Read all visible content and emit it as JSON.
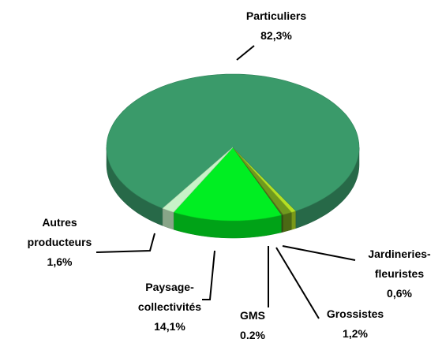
{
  "chart_data": {
    "type": "pie",
    "categories": [
      "Paysage-collectivités",
      "GMS",
      "Grossistes",
      "Jardineries-fleuristes",
      "Particuliers",
      "Autres producteurs"
    ],
    "values": [
      14.1,
      0.2,
      1.2,
      0.6,
      82.3,
      1.6
    ],
    "value_labels": [
      "14,1%",
      "0,2%",
      "1,2%",
      "0,6%",
      "82,3%",
      "1,6%"
    ],
    "colors": [
      "#00ee22",
      "#4f6b1f",
      "#6f9a1e",
      "#b4e024",
      "#3a9a6a",
      "#c8f2c8"
    ]
  }
}
